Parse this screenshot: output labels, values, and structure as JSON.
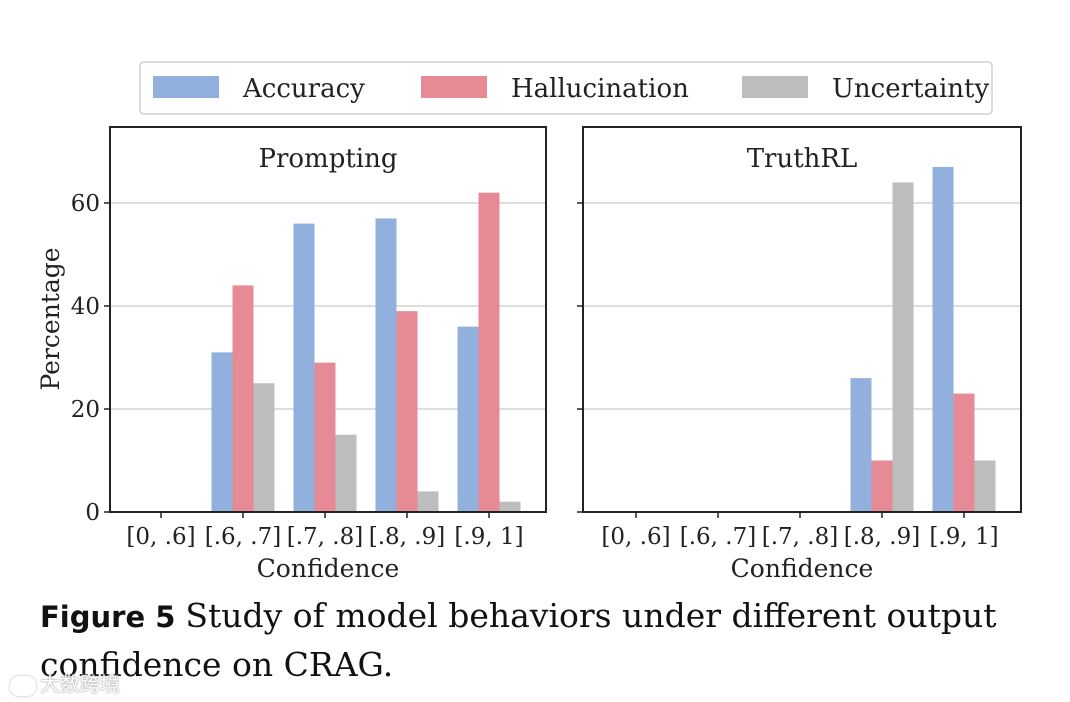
{
  "colors": {
    "accuracy": "#92b0de",
    "hallucination": "#e68a96",
    "uncertainty": "#bdbdbd",
    "grid": "#d4d4d4",
    "frame": "#222222"
  },
  "legend": {
    "items": [
      {
        "key": "accuracy",
        "label": "Accuracy"
      },
      {
        "key": "hallucination",
        "label": "Hallucination"
      },
      {
        "key": "uncertainty",
        "label": "Uncertainty"
      }
    ]
  },
  "chart_data": [
    {
      "type": "bar",
      "title": "Prompting",
      "xlabel": "Confidence",
      "ylabel": "Percentage",
      "ylim": [
        0,
        75
      ],
      "yticks": [
        0,
        20,
        40,
        60
      ],
      "grid": true,
      "categories": [
        "[0, .6]",
        "[.6, .7]",
        "[.7, .8]",
        "[.8, .9]",
        "[.9, 1]"
      ],
      "series": [
        {
          "name": "Accuracy",
          "key": "accuracy",
          "values": [
            0,
            31,
            56,
            57,
            36
          ]
        },
        {
          "name": "Hallucination",
          "key": "hallucination",
          "values": [
            0,
            44,
            29,
            39,
            62
          ]
        },
        {
          "name": "Uncertainty",
          "key": "uncertainty",
          "values": [
            0,
            25,
            15,
            4,
            2
          ]
        }
      ]
    },
    {
      "type": "bar",
      "title": "TruthRL",
      "xlabel": "Confidence",
      "ylabel": "",
      "ylim": [
        0,
        75
      ],
      "yticks": [
        0,
        20,
        40,
        60
      ],
      "grid": true,
      "categories": [
        "[0, .6]",
        "[.6, .7]",
        "[.7, .8]",
        "[.8, .9]",
        "[.9, 1]"
      ],
      "series": [
        {
          "name": "Accuracy",
          "key": "accuracy",
          "values": [
            0,
            0,
            0,
            26,
            67
          ]
        },
        {
          "name": "Hallucination",
          "key": "hallucination",
          "values": [
            0,
            0,
            0,
            10,
            23
          ]
        },
        {
          "name": "Uncertainty",
          "key": "uncertainty",
          "values": [
            0,
            0,
            0,
            64,
            10
          ]
        }
      ]
    }
  ],
  "caption": {
    "label": "Figure 5",
    "text": "Study of model behaviors under different output confidence on CRAG."
  },
  "watermark": {
    "text": "大数跨境"
  }
}
